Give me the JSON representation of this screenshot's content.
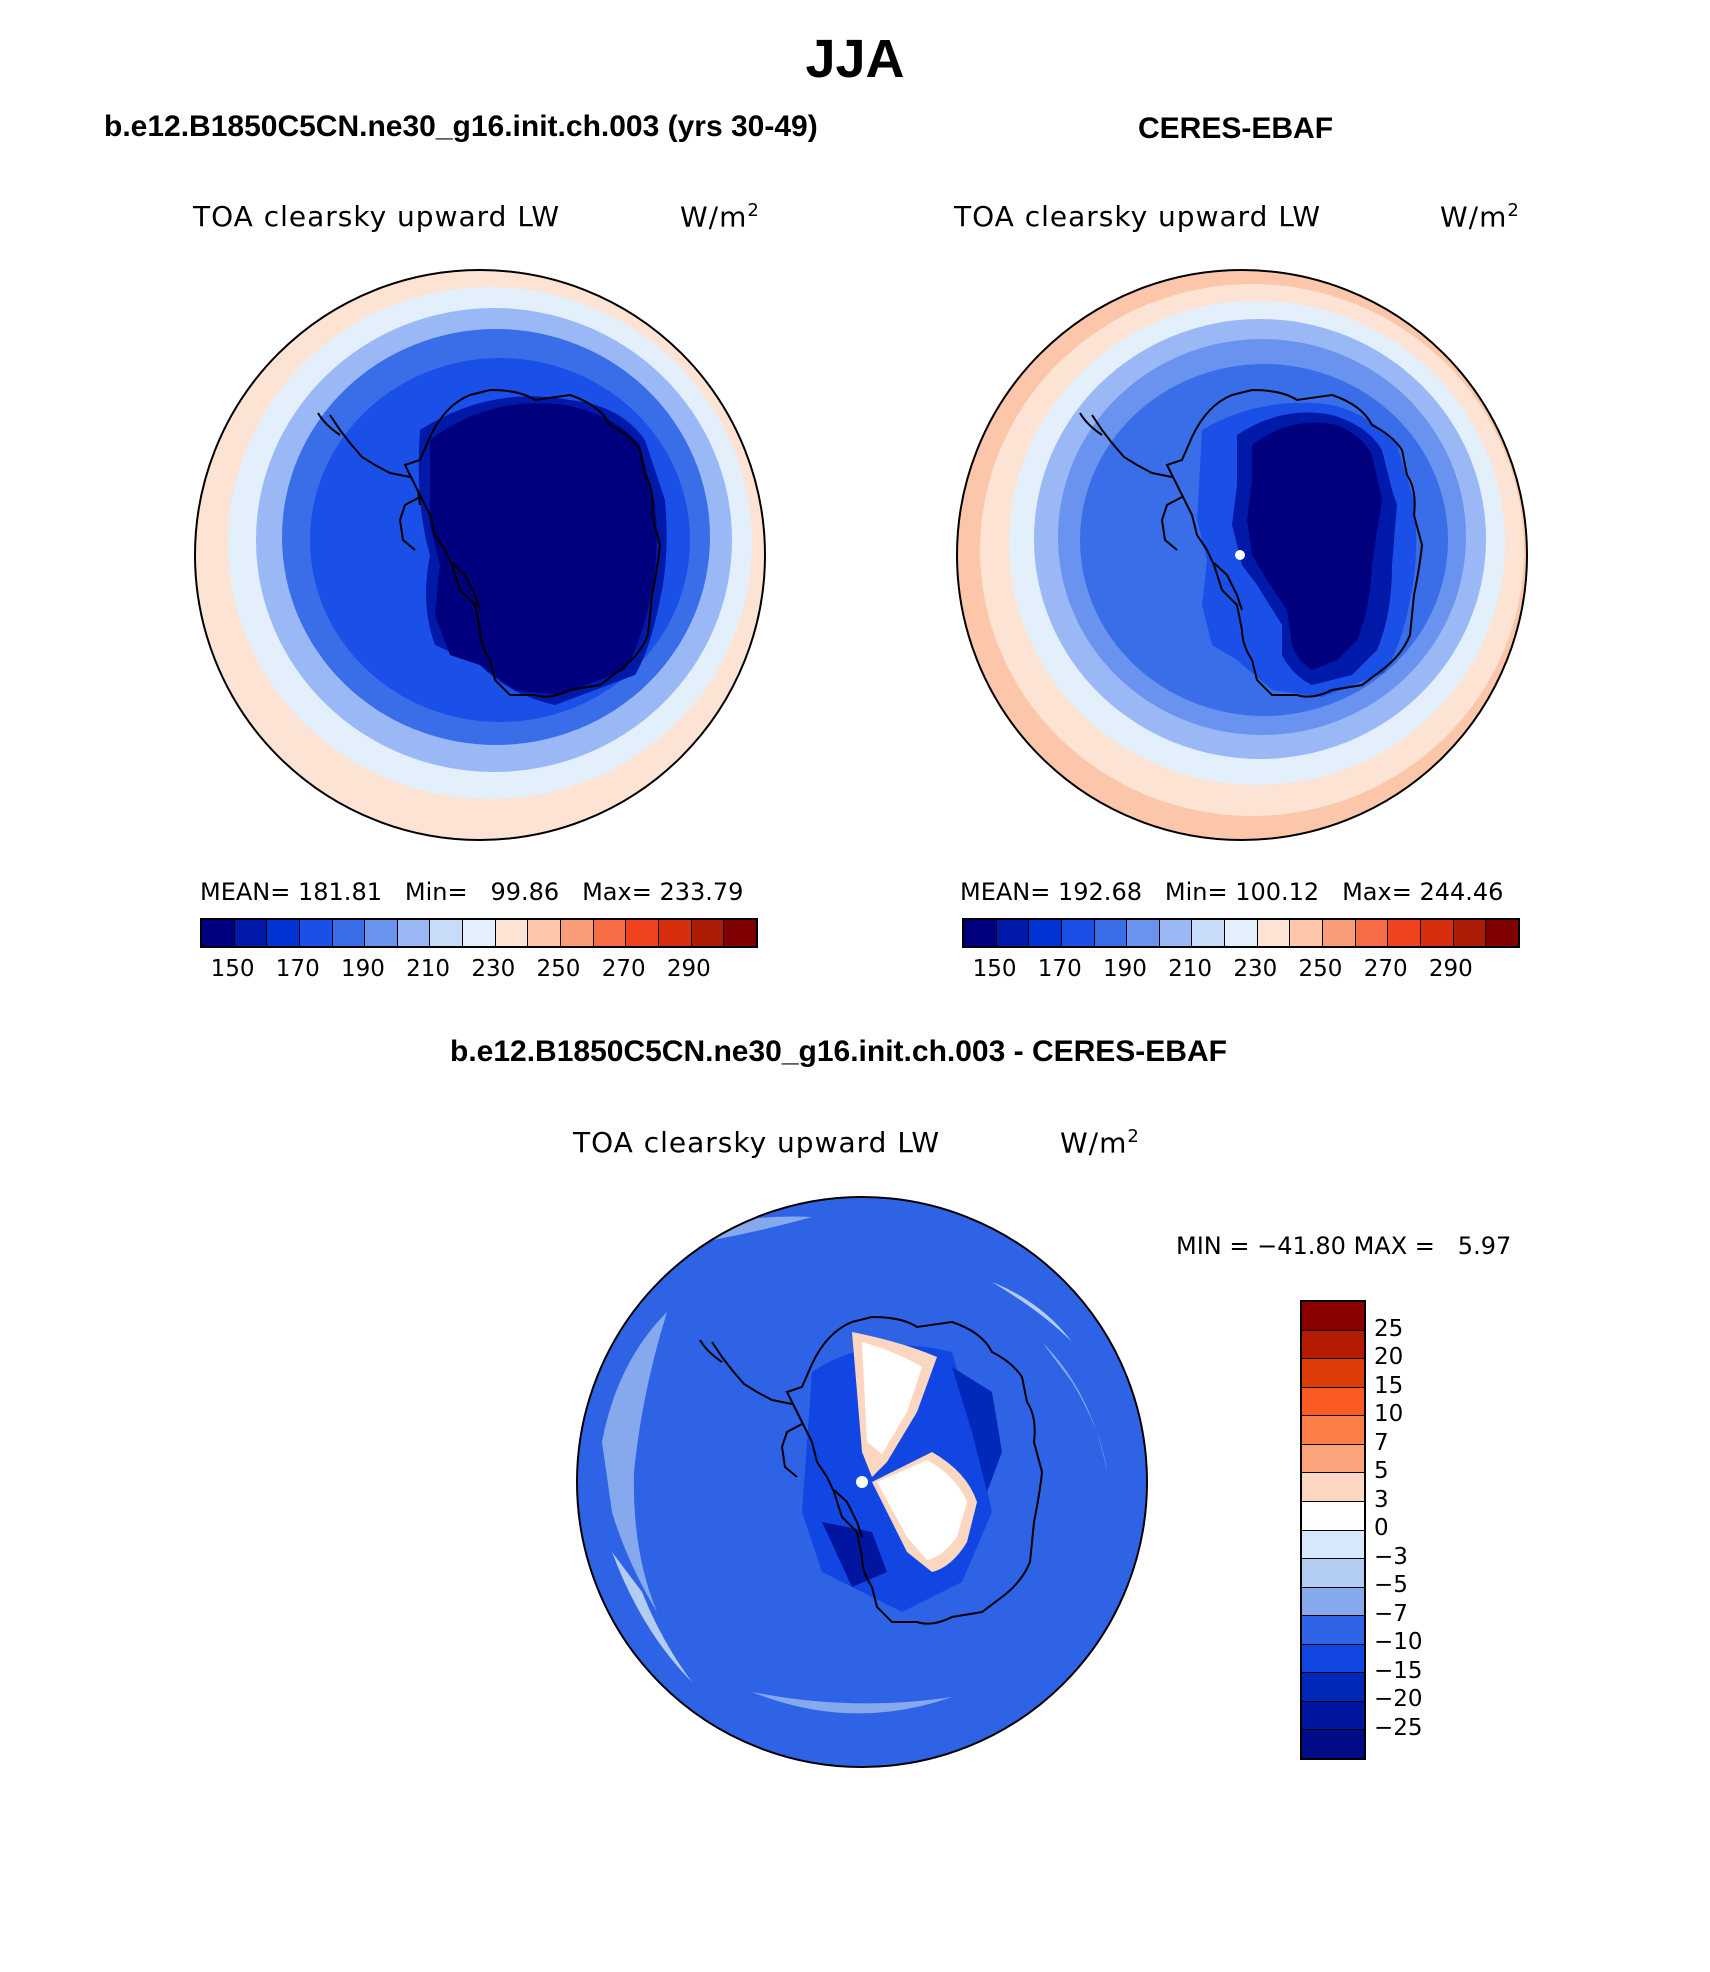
{
  "figure": {
    "season_title": "JJA"
  },
  "panels": [
    {
      "title": "b.e12.B1850C5CN.ne30_g16.init.ch.003 (yrs 30-49)",
      "variable": "TOA clearsky upward LW",
      "units": "W/m",
      "units_exponent": "2",
      "stats": {
        "mean_label": "MEAN=",
        "mean": "181.81",
        "min_label": "Min=",
        "min": "99.86",
        "max_label": "Max=",
        "max": "233.79"
      }
    },
    {
      "title": "CERES-EBAF",
      "variable": "TOA clearsky upward LW",
      "units": "W/m",
      "units_exponent": "2",
      "stats": {
        "mean_label": "MEAN=",
        "mean": "192.68",
        "min_label": "Min=",
        "min": "100.12",
        "max_label": "Max=",
        "max": "244.46"
      }
    },
    {
      "title": "b.e12.B1850C5CN.ne30_g16.init.ch.003 - CERES-EBAF",
      "variable": "TOA clearsky upward LW",
      "units": "W/m",
      "units_exponent": "2",
      "stats": {
        "min_label": "MIN =",
        "min": "−41.80",
        "max_label": "MAX =",
        "max": "5.97"
      }
    }
  ],
  "colorbars": {
    "abs": {
      "orientation": "horizontal",
      "colors": [
        "#00007f",
        "#0019a8",
        "#0033d3",
        "#1a50e8",
        "#3a6ee8",
        "#6a93ef",
        "#9ab8f5",
        "#c6dcf9",
        "#e3f0fc",
        "#fde3d3",
        "#fcc6aa",
        "#f99d78",
        "#f56c45",
        "#f0421e",
        "#d72e0e",
        "#ad1d05",
        "#7f0000"
      ],
      "labels": [
        "150",
        "170",
        "190",
        "210",
        "230",
        "250",
        "270",
        "290"
      ]
    },
    "diff": {
      "orientation": "vertical",
      "colors_top_to_bottom": [
        "#8b0000",
        "#b51b02",
        "#df3d08",
        "#fb5a22",
        "#fb7e48",
        "#faa47b",
        "#fbd6c1",
        "#ffffff",
        "#d7e8fa",
        "#b2ccf4",
        "#86a9ee",
        "#2f63e6",
        "#1246e2",
        "#0028b9",
        "#0015a0",
        "#000b88"
      ],
      "labels": [
        "25",
        "20",
        "15",
        "10",
        "7",
        "5",
        "3",
        "0",
        "−3",
        "−5",
        "−7",
        "−10",
        "−15",
        "−20",
        "−25"
      ]
    }
  },
  "map_data": {
    "projection": "south-polar stereographic",
    "region": "Antarctica / Southern Ocean",
    "field": "TOA clearsky upward LW flux",
    "units": "W/m2",
    "season": "JJA",
    "panels": [
      "model",
      "observation",
      "difference"
    ]
  }
}
